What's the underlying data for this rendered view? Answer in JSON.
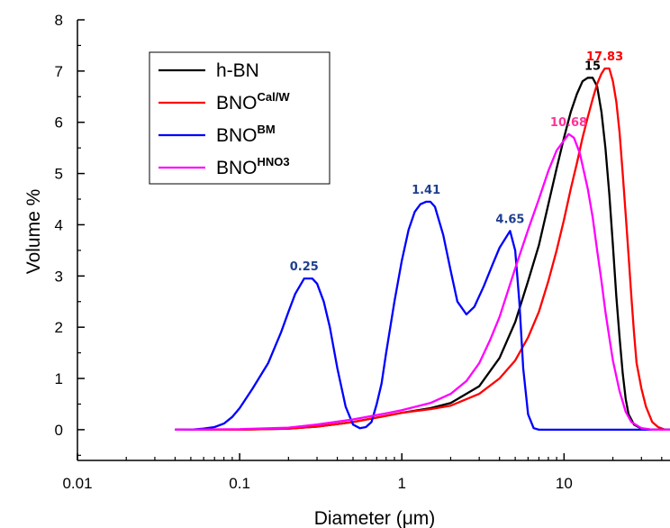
{
  "chart_data": {
    "type": "line",
    "xlabel": "Diameter (μm)",
    "ylabel": "Volume %",
    "x_scale": "log",
    "xlim": [
      0.01,
      45
    ],
    "ylim": [
      -0.6,
      8
    ],
    "x_ticks": [
      {
        "value": 0.01,
        "label": "0.01"
      },
      {
        "value": 0.1,
        "label": "0.1"
      },
      {
        "value": 1,
        "label": "1"
      },
      {
        "value": 10,
        "label": "10"
      }
    ],
    "y_ticks": [
      {
        "value": 0,
        "label": "0"
      },
      {
        "value": 1,
        "label": "1"
      },
      {
        "value": 2,
        "label": "2"
      },
      {
        "value": 3,
        "label": "3"
      },
      {
        "value": 4,
        "label": "4"
      },
      {
        "value": 5,
        "label": "5"
      },
      {
        "value": 6,
        "label": "6"
      },
      {
        "value": 7,
        "label": "7"
      },
      {
        "value": 8,
        "label": "8"
      }
    ],
    "legend_position": "top-left",
    "grid": false,
    "series": [
      {
        "name": "h-BN",
        "legend_main": "h-BN",
        "legend_sup": "",
        "color": "#000000",
        "points": [
          [
            0.04,
            0
          ],
          [
            0.1,
            0
          ],
          [
            0.2,
            0.02
          ],
          [
            0.3,
            0.06
          ],
          [
            0.5,
            0.15
          ],
          [
            0.8,
            0.27
          ],
          [
            1,
            0.33
          ],
          [
            1.5,
            0.42
          ],
          [
            2,
            0.52
          ],
          [
            3,
            0.85
          ],
          [
            4,
            1.4
          ],
          [
            5,
            2.1
          ],
          [
            6,
            2.9
          ],
          [
            7,
            3.6
          ],
          [
            8,
            4.4
          ],
          [
            9,
            5.1
          ],
          [
            10,
            5.7
          ],
          [
            11,
            6.2
          ],
          [
            12,
            6.55
          ],
          [
            13,
            6.8
          ],
          [
            14,
            6.87
          ],
          [
            15,
            6.87
          ],
          [
            16,
            6.7
          ],
          [
            17,
            6.2
          ],
          [
            18,
            5.5
          ],
          [
            19,
            4.6
          ],
          [
            20,
            3.6
          ],
          [
            21,
            2.6
          ],
          [
            22,
            1.8
          ],
          [
            23,
            1.1
          ],
          [
            24,
            0.6
          ],
          [
            25,
            0.3
          ],
          [
            27,
            0.1
          ],
          [
            30,
            0.02
          ],
          [
            35,
            0
          ],
          [
            45,
            0
          ]
        ]
      },
      {
        "name": "BNO Cal/W",
        "legend_main": "BNO",
        "legend_sup": "Cal/W",
        "color": "#ff0000",
        "points": [
          [
            0.04,
            0
          ],
          [
            0.1,
            0
          ],
          [
            0.2,
            0.02
          ],
          [
            0.3,
            0.06
          ],
          [
            0.5,
            0.15
          ],
          [
            0.8,
            0.27
          ],
          [
            1,
            0.33
          ],
          [
            1.5,
            0.4
          ],
          [
            2,
            0.47
          ],
          [
            3,
            0.7
          ],
          [
            4,
            1.0
          ],
          [
            5,
            1.35
          ],
          [
            6,
            1.8
          ],
          [
            7,
            2.3
          ],
          [
            8,
            2.9
          ],
          [
            9,
            3.5
          ],
          [
            10,
            4.1
          ],
          [
            11,
            4.7
          ],
          [
            12,
            5.2
          ],
          [
            13,
            5.7
          ],
          [
            14,
            6.1
          ],
          [
            15,
            6.45
          ],
          [
            16,
            6.75
          ],
          [
            17,
            6.95
          ],
          [
            17.83,
            7.05
          ],
          [
            19,
            7.05
          ],
          [
            20,
            6.8
          ],
          [
            21,
            6.4
          ],
          [
            22,
            5.8
          ],
          [
            23,
            5.0
          ],
          [
            24,
            4.2
          ],
          [
            25,
            3.4
          ],
          [
            26,
            2.6
          ],
          [
            27,
            1.9
          ],
          [
            28,
            1.3
          ],
          [
            30,
            0.8
          ],
          [
            32,
            0.45
          ],
          [
            35,
            0.15
          ],
          [
            38,
            0.05
          ],
          [
            42,
            0
          ],
          [
            45,
            0
          ]
        ]
      },
      {
        "name": "BNO BM",
        "legend_main": "BNO",
        "legend_sup": "BM",
        "color": "#0000ff",
        "points": [
          [
            0.04,
            0
          ],
          [
            0.05,
            0
          ],
          [
            0.06,
            0.02
          ],
          [
            0.07,
            0.05
          ],
          [
            0.08,
            0.12
          ],
          [
            0.09,
            0.25
          ],
          [
            0.1,
            0.42
          ],
          [
            0.12,
            0.8
          ],
          [
            0.15,
            1.3
          ],
          [
            0.18,
            1.9
          ],
          [
            0.2,
            2.3
          ],
          [
            0.22,
            2.65
          ],
          [
            0.25,
            2.95
          ],
          [
            0.28,
            2.95
          ],
          [
            0.3,
            2.85
          ],
          [
            0.33,
            2.5
          ],
          [
            0.36,
            2.0
          ],
          [
            0.4,
            1.2
          ],
          [
            0.45,
            0.45
          ],
          [
            0.5,
            0.1
          ],
          [
            0.55,
            0.03
          ],
          [
            0.6,
            0.05
          ],
          [
            0.65,
            0.15
          ],
          [
            0.7,
            0.5
          ],
          [
            0.75,
            0.9
          ],
          [
            0.8,
            1.5
          ],
          [
            0.9,
            2.5
          ],
          [
            1,
            3.3
          ],
          [
            1.1,
            3.9
          ],
          [
            1.2,
            4.25
          ],
          [
            1.3,
            4.4
          ],
          [
            1.41,
            4.45
          ],
          [
            1.5,
            4.45
          ],
          [
            1.6,
            4.35
          ],
          [
            1.8,
            3.8
          ],
          [
            2,
            3.1
          ],
          [
            2.2,
            2.5
          ],
          [
            2.5,
            2.25
          ],
          [
            2.8,
            2.4
          ],
          [
            3.2,
            2.8
          ],
          [
            3.6,
            3.2
          ],
          [
            4,
            3.55
          ],
          [
            4.65,
            3.88
          ],
          [
            5,
            3.5
          ],
          [
            5.3,
            2.5
          ],
          [
            5.6,
            1.2
          ],
          [
            6,
            0.3
          ],
          [
            6.5,
            0.03
          ],
          [
            7,
            0
          ],
          [
            45,
            0
          ]
        ]
      },
      {
        "name": "BNO HNO3",
        "legend_main": "BNO",
        "legend_sup": "HNO3",
        "color": "#ff00ff",
        "points": [
          [
            0.04,
            0
          ],
          [
            0.1,
            0.01
          ],
          [
            0.2,
            0.04
          ],
          [
            0.3,
            0.1
          ],
          [
            0.5,
            0.2
          ],
          [
            0.8,
            0.32
          ],
          [
            1,
            0.38
          ],
          [
            1.5,
            0.52
          ],
          [
            2,
            0.7
          ],
          [
            2.5,
            0.95
          ],
          [
            3,
            1.3
          ],
          [
            3.5,
            1.75
          ],
          [
            4,
            2.2
          ],
          [
            4.5,
            2.7
          ],
          [
            5,
            3.15
          ],
          [
            6,
            3.9
          ],
          [
            7,
            4.5
          ],
          [
            8,
            5.05
          ],
          [
            9,
            5.45
          ],
          [
            10.68,
            5.77
          ],
          [
            11.5,
            5.7
          ],
          [
            12.5,
            5.4
          ],
          [
            14,
            4.7
          ],
          [
            15,
            4.15
          ],
          [
            16,
            3.5
          ],
          [
            17,
            2.9
          ],
          [
            18,
            2.3
          ],
          [
            19,
            1.8
          ],
          [
            20,
            1.35
          ],
          [
            22,
            0.75
          ],
          [
            24,
            0.35
          ],
          [
            26,
            0.15
          ],
          [
            30,
            0.03
          ],
          [
            35,
            0
          ],
          [
            45,
            0
          ]
        ]
      }
    ],
    "peak_labels": [
      {
        "text": "0.25",
        "x": 0.25,
        "y": 2.95,
        "color": "#1f3f8f"
      },
      {
        "text": "1.41",
        "x": 1.41,
        "y": 4.45,
        "color": "#1f3f8f"
      },
      {
        "text": "4.65",
        "x": 4.65,
        "y": 3.88,
        "color": "#1f3f8f"
      },
      {
        "text": "10.68",
        "x": 10.68,
        "y": 5.77,
        "color": "#ff3399"
      },
      {
        "text": "15",
        "x": 15,
        "y": 6.87,
        "color": "#000000"
      },
      {
        "text": "17.83",
        "x": 17.83,
        "y": 7.05,
        "color": "#ff0000"
      }
    ]
  }
}
